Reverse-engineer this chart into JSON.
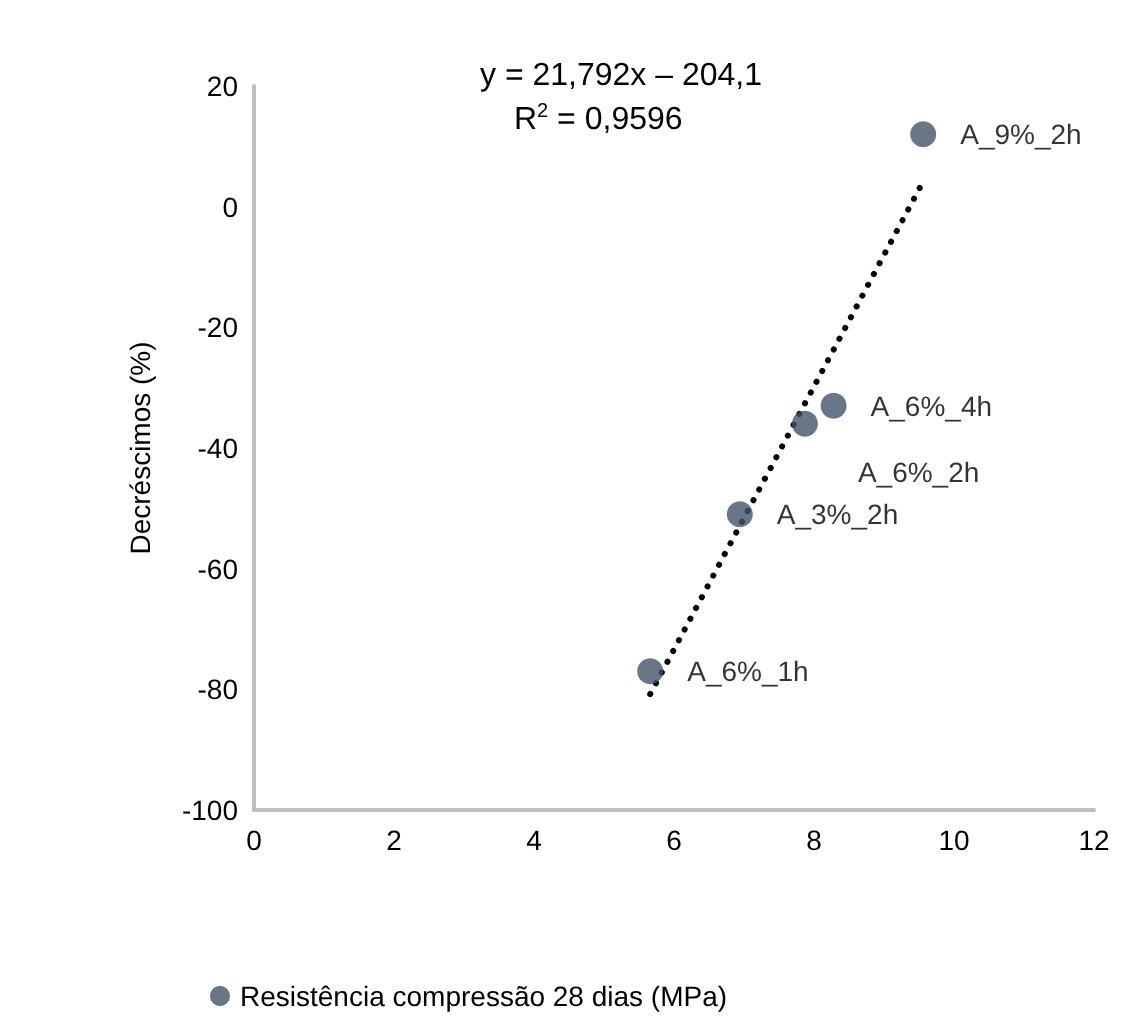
{
  "chart_data": {
    "type": "scatter",
    "ylabel": "Decréscimos (%)",
    "x": [
      5.66,
      6.94,
      7.87,
      8.28,
      9.56
    ],
    "series": [
      {
        "name": "Resistência compressão 28 dias (MPa)",
        "color": "#44546a",
        "type": "scatter",
        "marker": "circle",
        "values": [
          -77,
          -51,
          -36,
          -33,
          12
        ],
        "value_labels": [
          "A_6%_1h",
          "A_3%_2h",
          "A_6%_2h",
          "A_6%_4h",
          "A_9%_2h"
        ]
      },
      {
        "type": "line",
        "color": "#000000",
        "line_style": "dotted",
        "marker": "none",
        "x": [
          5.66,
          9.51
        ],
        "values": [
          -80.8,
          3.1
        ]
      }
    ],
    "annotations": [
      "y = 21,792x – 204,1",
      "R$^{2}$ = 0,9596"
    ],
    "xlim": [
      0,
      12
    ],
    "xticks": [
      0,
      2,
      4,
      6,
      8,
      10,
      12
    ],
    "ylim": [
      -100,
      20
    ],
    "yticks": [
      -100,
      -80,
      -60,
      -40,
      -20,
      0,
      20
    ],
    "grid": false,
    "legend": "bottom"
  }
}
